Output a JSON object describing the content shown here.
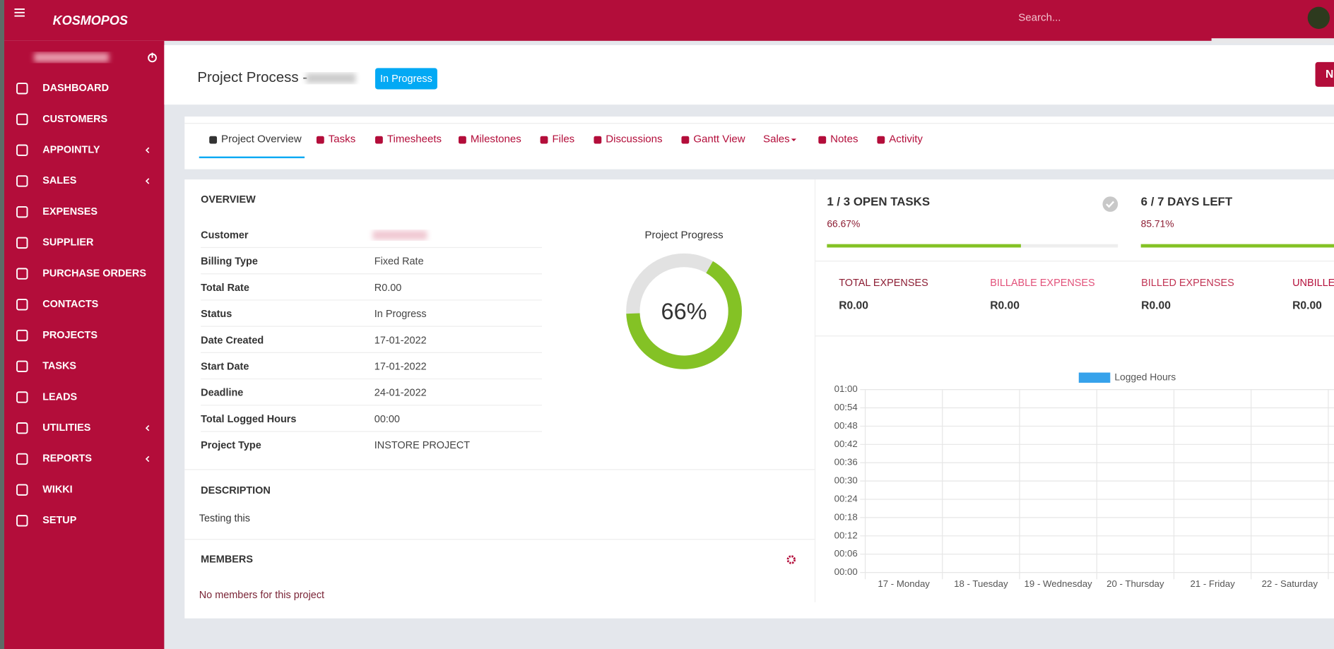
{
  "header": {
    "logo": "KOSMOPOS",
    "search_placeholder": "Search..."
  },
  "sidebar": {
    "menu": [
      {
        "label": "DASHBOARD"
      },
      {
        "label": "CUSTOMERS"
      },
      {
        "label": "APPOINTLY",
        "submenu": true
      },
      {
        "label": "SALES",
        "submenu": true
      },
      {
        "label": "EXPENSES"
      },
      {
        "label": "SUPPLIER"
      },
      {
        "label": "PURCHASE ORDERS"
      },
      {
        "label": "CONTACTS"
      },
      {
        "label": "PROJECTS"
      },
      {
        "label": "TASKS"
      },
      {
        "label": "LEADS"
      },
      {
        "label": "UTILITIES",
        "submenu": true
      },
      {
        "label": "REPORTS",
        "submenu": true
      },
      {
        "label": "WIKKI"
      },
      {
        "label": "SETUP"
      }
    ]
  },
  "page": {
    "title": "Project Process -",
    "status": "In Progress",
    "action_button": "N"
  },
  "tabs": [
    "Project Overview",
    "Tasks",
    "Timesheets",
    "Milestones",
    "Files",
    "Discussions",
    "Gantt View",
    "Sales",
    "Notes",
    "Activity"
  ],
  "overview": {
    "heading": "OVERVIEW",
    "rows": [
      {
        "label": "Customer"
      },
      {
        "label": "Billing Type",
        "value": "Fixed Rate"
      },
      {
        "label": "Total Rate",
        "value": "R0.00"
      },
      {
        "label": "Status",
        "value": "In Progress"
      },
      {
        "label": "Date Created",
        "value": "17-01-2022"
      },
      {
        "label": "Start Date",
        "value": "17-01-2022"
      },
      {
        "label": "Deadline",
        "value": "24-01-2022"
      },
      {
        "label": "Total Logged Hours",
        "value": "00:00"
      },
      {
        "label": "Project Type",
        "value": "INSTORE PROJECT"
      }
    ]
  },
  "progress": {
    "title": "Project Progress",
    "value": 66,
    "value_label": "66%",
    "color": "#84c225"
  },
  "tasks_stat": {
    "title": "1 / 3 OPEN TASKS",
    "percent": 66.67,
    "percent_label": "66.67%"
  },
  "days_stat": {
    "title": "6 / 7 DAYS LEFT",
    "percent": 85.71,
    "percent_label": "85.71%"
  },
  "expenses": [
    {
      "label": "TOTAL EXPENSES",
      "value": "R0.00",
      "color": "#8c1d33"
    },
    {
      "label": "BILLABLE EXPENSES",
      "value": "R0.00",
      "color": "#e2517a"
    },
    {
      "label": "BILLED EXPENSES",
      "value": "R0.00",
      "color": "#c13454"
    },
    {
      "label": "UNBILLED EXPENSES",
      "value": "R0.00",
      "color": "#b5103c"
    }
  ],
  "description": {
    "heading": "DESCRIPTION",
    "text": "Testing this"
  },
  "members": {
    "heading": "MEMBERS",
    "empty": "No members for this project"
  },
  "chart_data": {
    "type": "bar",
    "categories": [
      "17 - Monday",
      "18 - Tuesday",
      "19 - Wednesday",
      "20 - Thursday",
      "21 - Friday",
      "22 - Saturday"
    ],
    "series": [
      {
        "name": "Logged Hours",
        "color": "#36a2eb",
        "values": [
          0,
          0,
          0,
          0,
          0,
          0
        ]
      }
    ],
    "ylim": [
      0,
      1
    ],
    "yticks": [
      {
        "value": 0,
        "label": "00:00"
      },
      {
        "value": 0.1,
        "label": "00:06"
      },
      {
        "value": 0.2,
        "label": "00:12"
      },
      {
        "value": 0.3,
        "label": "00:18"
      },
      {
        "value": 0.4,
        "label": "00:24"
      },
      {
        "value": 0.5,
        "label": "00:30"
      },
      {
        "value": 0.6,
        "label": "00:36"
      },
      {
        "value": 0.7,
        "label": "00:42"
      },
      {
        "value": 0.8,
        "label": "00:48"
      },
      {
        "value": 0.9,
        "label": "00:54"
      },
      {
        "value": 1,
        "label": "01:00"
      }
    ],
    "grid": true,
    "legend": "top"
  }
}
